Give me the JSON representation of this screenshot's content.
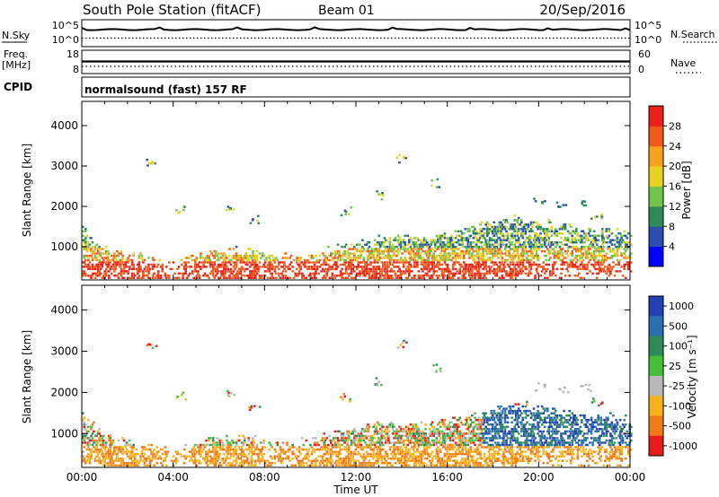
{
  "header": {
    "station": "South Pole Station (fitACF)",
    "beam": "Beam 01",
    "date": "20/Sep/2016"
  },
  "sky_panel": {
    "left_label": "N.Sky",
    "right_label": "N.Search",
    "left_ticks": [
      "10^5",
      "10^0"
    ],
    "right_ticks": [
      "10^5",
      "10^0"
    ]
  },
  "freq_panel": {
    "left_label_1": "Freq.",
    "left_label_2": "[MHz]",
    "right_label": "Nave",
    "left_ticks": [
      "18",
      "8"
    ],
    "right_ticks": [
      "60",
      "0"
    ]
  },
  "cpid": {
    "label": "CPID",
    "text": "normalsound (fast) 157 RF"
  },
  "x_axis": {
    "title": "Time UT",
    "ticks": [
      "00:00",
      "04:00",
      "08:00",
      "12:00",
      "16:00",
      "20:00",
      "00:00"
    ]
  },
  "chart_data": [
    {
      "type": "heatmap",
      "name": "power",
      "ylabel": "Slant Range [km]",
      "yticks": [
        "1000",
        "2000",
        "3000",
        "4000"
      ],
      "ylim": [
        180,
        4600
      ],
      "xlim": [
        0,
        24
      ],
      "colorbar": {
        "label": "Power [dB]",
        "ticks": [
          "4",
          "8",
          "12",
          "16",
          "20",
          "24",
          "28"
        ],
        "colors": [
          "#0000ff",
          "#2a4fb0",
          "#2e8b57",
          "#73c44b",
          "#e8d21e",
          "#f6a21c",
          "#f05a1a",
          "#e8221a"
        ]
      }
    },
    {
      "type": "heatmap",
      "name": "velocity",
      "ylabel": "Slant Range [km]",
      "yticks": [
        "1000",
        "2000",
        "3000",
        "4000"
      ],
      "ylim": [
        180,
        4600
      ],
      "xlim": [
        0,
        24
      ],
      "colorbar": {
        "label": "Velocity [m s⁻¹]",
        "ticks": [
          "1000",
          "500",
          "100",
          "25",
          "-25",
          "-100",
          "-500",
          "-1000"
        ],
        "colors": [
          "#2242b4",
          "#2a6fb0",
          "#2e8b57",
          "#45c03a",
          "#b8b8b8",
          "#f6b21c",
          "#f07a1a",
          "#e81a1a"
        ]
      }
    }
  ]
}
